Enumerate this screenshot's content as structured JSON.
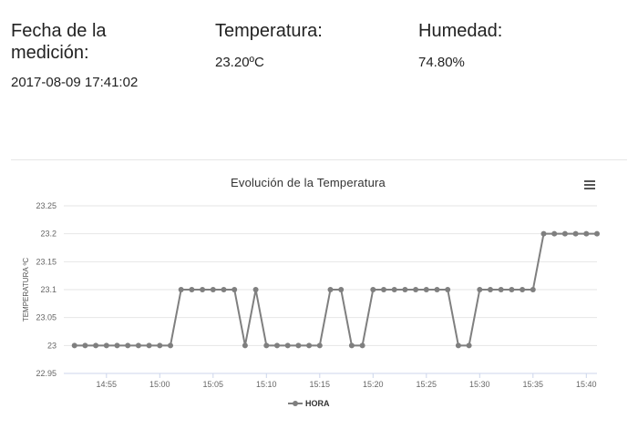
{
  "stats": {
    "fecha": {
      "title_line1": "Fecha de la",
      "title_line2": "medición:",
      "value": "2017-08-09 17:41:02"
    },
    "temperatura": {
      "title": "Temperatura:",
      "value": "23.20ºC"
    },
    "humedad": {
      "title": "Humedad:",
      "value": "74.80%"
    }
  },
  "menu": {
    "icon": "hamburger-menu-icon"
  },
  "chart_data": {
    "type": "line",
    "title": "Evolución de la Temperatura",
    "xlabel": "",
    "ylabel": "TEMPERATURA ºC",
    "ylim": [
      22.95,
      23.25
    ],
    "yticks": [
      22.95,
      23,
      23.05,
      23.1,
      23.15,
      23.2,
      23.25
    ],
    "ytick_labels": [
      "22.95",
      "23",
      "23.05",
      "23.1",
      "23.15",
      "23.2",
      "23.25"
    ],
    "xlim": [
      "14:51",
      "15:41"
    ],
    "xticks": [
      "14:55",
      "15:00",
      "15:05",
      "15:10",
      "15:15",
      "15:20",
      "15:25",
      "15:30",
      "15:35",
      "15:40"
    ],
    "grid": true,
    "legend": "bottom-center",
    "color": "#7f7f7f",
    "series": [
      {
        "name": "HORA",
        "x": [
          "14:52",
          "14:53",
          "14:54",
          "14:55",
          "14:56",
          "14:57",
          "14:58",
          "14:59",
          "15:00",
          "15:01",
          "15:02",
          "15:03",
          "15:04",
          "15:05",
          "15:06",
          "15:07",
          "15:08",
          "15:09",
          "15:10",
          "15:11",
          "15:12",
          "15:13",
          "15:14",
          "15:15",
          "15:16",
          "15:17",
          "15:18",
          "15:19",
          "15:20",
          "15:21",
          "15:22",
          "15:23",
          "15:24",
          "15:25",
          "15:26",
          "15:27",
          "15:28",
          "15:29",
          "15:30",
          "15:31",
          "15:32",
          "15:33",
          "15:34",
          "15:35",
          "15:36",
          "15:37",
          "15:38",
          "15:39",
          "15:40",
          "15:41"
        ],
        "values": [
          23,
          23,
          23,
          23,
          23,
          23,
          23,
          23,
          23,
          23,
          23.1,
          23.1,
          23.1,
          23.1,
          23.1,
          23.1,
          23,
          23.1,
          23,
          23,
          23,
          23,
          23,
          23,
          23.1,
          23.1,
          23,
          23,
          23.1,
          23.1,
          23.1,
          23.1,
          23.1,
          23.1,
          23.1,
          23.1,
          23,
          23,
          23.1,
          23.1,
          23.1,
          23.1,
          23.1,
          23.1,
          23.2,
          23.2,
          23.2,
          23.2,
          23.2,
          23.2
        ]
      }
    ]
  }
}
